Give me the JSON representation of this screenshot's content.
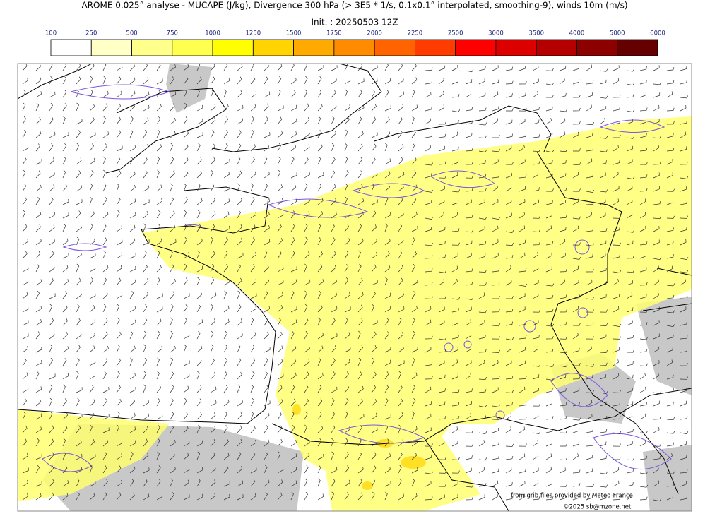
{
  "header": {
    "title": "AROME 0.025° analyse - MUCAPE (J/kg), Divergence 300 hPa (> 3E5 * 1/s, 0.1x0.1° interpolated, smoothing-9), winds 10m (m/s)",
    "init": "Init. : 20250503 12Z"
  },
  "colorbar": {
    "ticks": [
      100,
      250,
      500,
      750,
      1000,
      1250,
      1500,
      1750,
      2000,
      2250,
      2500,
      3000,
      3500,
      4000,
      5000,
      6000
    ],
    "colors": [
      "#ffffff",
      "#ffffc6",
      "#ffff8c",
      "#ffff50",
      "#ffff00",
      "#ffd400",
      "#ffaa00",
      "#ff8c00",
      "#ff6400",
      "#ff3c00",
      "#ff0000",
      "#dc0000",
      "#b40000",
      "#8c0000",
      "#640000"
    ]
  },
  "credits": {
    "source": "from grib files provided by Meteo-France",
    "copyright": "©2025 sb@mzone.net"
  }
}
